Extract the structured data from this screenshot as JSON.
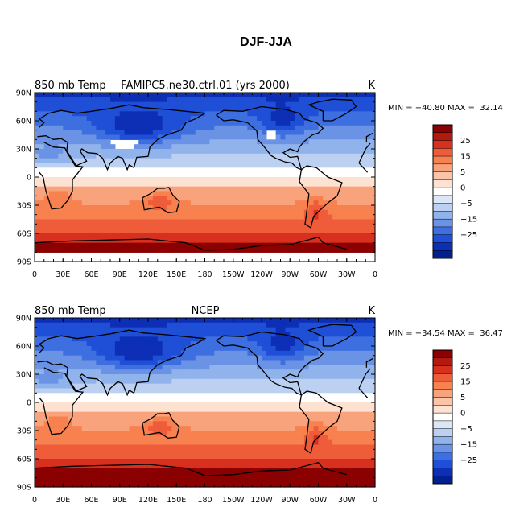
{
  "figure_title": "DJF-JJA",
  "color_levels": [
    "#8b0000",
    "#b21a0e",
    "#d7301f",
    "#ef5c3a",
    "#f7814f",
    "#f9a37d",
    "#fbc4a8",
    "#fde2d2",
    "#ffffff",
    "#dbe6f7",
    "#bcd1f2",
    "#91b3ec",
    "#6b93e5",
    "#3d6fe0",
    "#1f4fd6",
    "#0d2fb5",
    "#00208f"
  ],
  "colorbar_labels": [
    "25",
    "15",
    "5",
    "0",
    "−5",
    "−15",
    "−25"
  ],
  "lat_labels": [
    "90N",
    "60N",
    "30N",
    "0",
    "30S",
    "60S",
    "90S"
  ],
  "lon_labels": [
    "0",
    "30E",
    "60E",
    "90E",
    "120E",
    "150E",
    "180",
    "150W",
    "120W",
    "90W",
    "60W",
    "30W",
    "0"
  ],
  "panels": [
    {
      "variable": "850 mb Temp",
      "case": "FAMIPC5.ne30.ctrl.01 (yrs 2000)",
      "units": "K",
      "min_max": "MIN = −40.80 MAX =  32.14",
      "missing_color": "#ffffff"
    },
    {
      "variable": "850 mb Temp",
      "case": "NCEP",
      "units": "K",
      "min_max": "MIN = −34.54 MAX =  36.47",
      "missing_color": "#ffffff"
    }
  ]
}
